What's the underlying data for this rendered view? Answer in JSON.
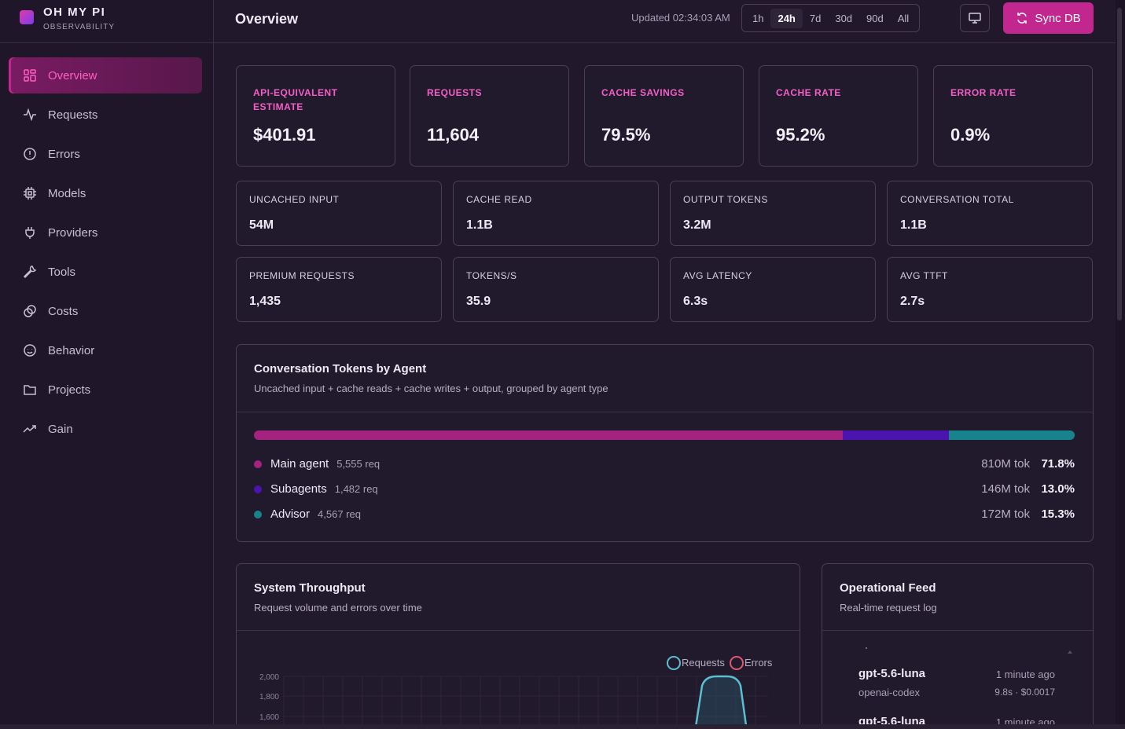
{
  "brand": {
    "name": "OH MY PI",
    "subtitle": "OBSERVABILITY"
  },
  "nav": [
    {
      "label": "Overview",
      "icon": "grid-icon",
      "active": true
    },
    {
      "label": "Requests",
      "icon": "activity-icon"
    },
    {
      "label": "Errors",
      "icon": "alert-circle-icon"
    },
    {
      "label": "Models",
      "icon": "cpu-icon"
    },
    {
      "label": "Providers",
      "icon": "plug-icon"
    },
    {
      "label": "Tools",
      "icon": "wrench-icon"
    },
    {
      "label": "Costs",
      "icon": "coins-icon"
    },
    {
      "label": "Behavior",
      "icon": "smile-icon"
    },
    {
      "label": "Projects",
      "icon": "folder-icon"
    },
    {
      "label": "Gain",
      "icon": "trending-up-icon"
    }
  ],
  "header": {
    "title": "Overview",
    "updated": "Updated 02:34:03 AM",
    "ranges": [
      "1h",
      "24h",
      "7d",
      "30d",
      "90d",
      "All"
    ],
    "selected_range": "24h",
    "sync_label": "Sync DB"
  },
  "kpis": [
    {
      "label": "API-EQUIVALENT ESTIMATE",
      "value": "$401.91"
    },
    {
      "label": "REQUESTS",
      "value": "11,604"
    },
    {
      "label": "CACHE SAVINGS",
      "value": "79.5%"
    },
    {
      "label": "CACHE RATE",
      "value": "95.2%"
    },
    {
      "label": "ERROR RATE",
      "value": "0.9%"
    }
  ],
  "stats": [
    {
      "label": "UNCACHED INPUT",
      "value": "54M"
    },
    {
      "label": "CACHE READ",
      "value": "1.1B"
    },
    {
      "label": "OUTPUT TOKENS",
      "value": "3.2M"
    },
    {
      "label": "CONVERSATION TOTAL",
      "value": "1.1B"
    },
    {
      "label": "PREMIUM REQUESTS",
      "value": "1,435"
    },
    {
      "label": "TOKENS/S",
      "value": "35.9"
    },
    {
      "label": "AVG LATENCY",
      "value": "6.3s"
    },
    {
      "label": "AVG TTFT",
      "value": "2.7s"
    }
  ],
  "agents_panel": {
    "title": "Conversation Tokens by Agent",
    "subtitle": "Uncached input + cache reads + cache writes + output, grouped by agent type",
    "rows": [
      {
        "name": "Main agent",
        "req": "5,555 req",
        "tokens": "810M tok",
        "pct": "71.8%",
        "share": 71.8,
        "color": "#a3237f"
      },
      {
        "name": "Subagents",
        "req": "1,482 req",
        "tokens": "146M tok",
        "pct": "13.0%",
        "share": 13.0,
        "color": "#4b13b0"
      },
      {
        "name": "Advisor",
        "req": "4,567 req",
        "tokens": "172M tok",
        "pct": "15.3%",
        "share": 15.3,
        "color": "#19838d"
      }
    ]
  },
  "throughput_panel": {
    "title": "System Throughput",
    "subtitle": "Request volume and errors over time",
    "legend": [
      {
        "name": "Requests",
        "color": "#5bbfd1"
      },
      {
        "name": "Errors",
        "color": "#e0586f"
      }
    ],
    "y_ticks": [
      "2,000",
      "1,800",
      "1,600"
    ]
  },
  "feed_panel": {
    "title": "Operational Feed",
    "subtitle": "Real-time request log",
    "items": [
      {
        "model": "gpt-5.6-luna",
        "provider": "openai-codex",
        "time": "1 minute ago",
        "cost": "9.8s · $0.0017"
      },
      {
        "model": "gpt-5.6-luna",
        "provider": "",
        "time": "1 minute ago",
        "cost": ""
      }
    ]
  },
  "chart_data": {
    "type": "area",
    "title": "System Throughput",
    "series": [
      {
        "name": "Requests"
      },
      {
        "name": "Errors"
      }
    ],
    "y_ticks": [
      2000,
      1800,
      1600
    ],
    "legend": "top-right",
    "grid": true
  }
}
